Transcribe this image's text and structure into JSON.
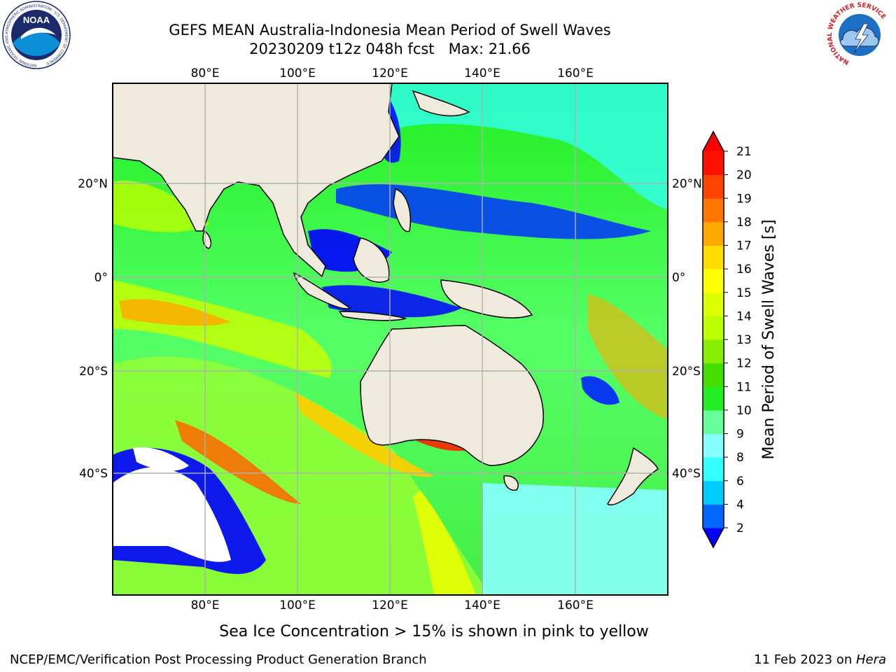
{
  "header": {
    "title_line1": "GEFS MEAN Australia-Indonesia Mean Period of Swell Waves",
    "title_line2": "20230209 t12z 048h fcst   Max: 21.66"
  },
  "logos": {
    "noaa": "NOAA",
    "noaa_ring": "NATIONAL OCEANIC AND ATMOSPHERIC ADMINISTRATION · U.S. DEPARTMENT OF COMMERCE",
    "nws_ring": "NATIONAL WEATHER SERVICE"
  },
  "map": {
    "lon_labels": [
      "80°E",
      "100°E",
      "120°E",
      "140°E",
      "160°E"
    ],
    "lat_labels": [
      "20°N",
      "0°",
      "20°S",
      "40°S"
    ],
    "land_color": "#eeebdc",
    "grid_color": "#b0b0b0"
  },
  "colorbar": {
    "label": "Mean Period of Swell Waves [s]",
    "ticks": [
      "2",
      "4",
      "6",
      "8",
      "9",
      "10",
      "11",
      "12",
      "13",
      "14",
      "15",
      "16",
      "17",
      "18",
      "19",
      "20",
      "21"
    ],
    "colors": [
      "#0000ff",
      "#0066ff",
      "#00ccff",
      "#33ffff",
      "#88ffff",
      "#66ff99",
      "#22ee22",
      "#44dd00",
      "#88ee00",
      "#bbff00",
      "#ddff00",
      "#ffff00",
      "#ffdd00",
      "#ffaa00",
      "#ff7700",
      "#ff4400",
      "#ff1100",
      "#ff0000"
    ]
  },
  "notes": {
    "ice": "Sea Ice Concentration > 15% is shown in pink to yellow"
  },
  "footer": {
    "left": "NCEP/EMC/Verification Post Processing Product Generation Branch",
    "right_date": "11 Feb 2023 on ",
    "right_host": "Hera"
  }
}
